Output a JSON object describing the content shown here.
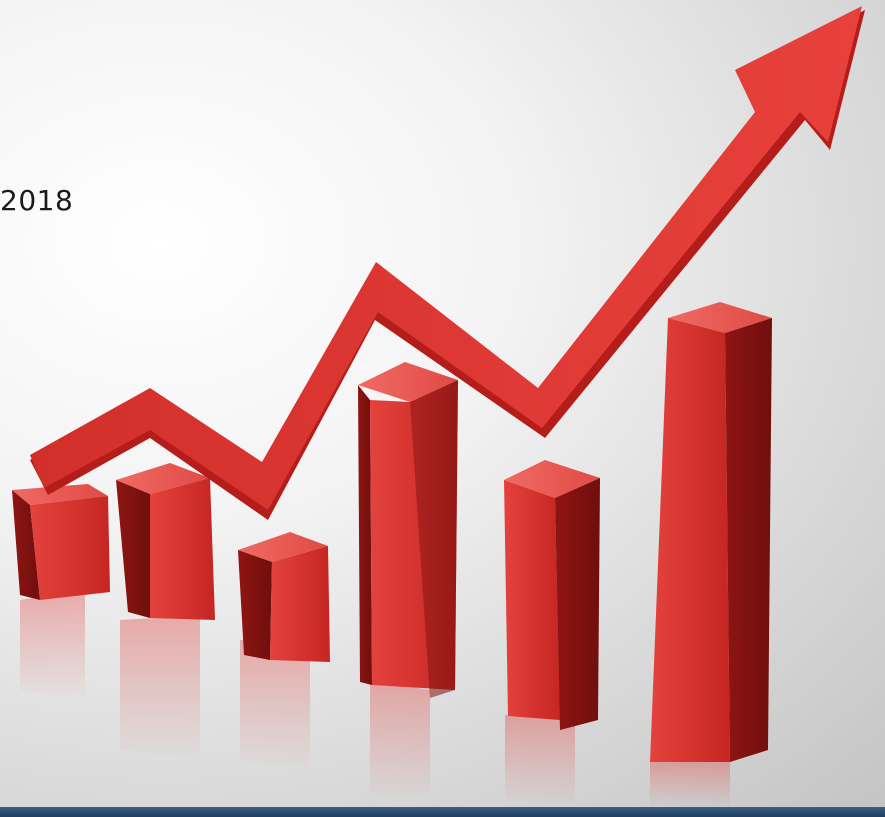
{
  "caption": {
    "year": "2018"
  },
  "image": {
    "subject": "rising-bar-chart-with-arrow",
    "bar_color": "#d9302d",
    "arrow_color": "#e03a36",
    "bottom_bar_color": "#2c4e74"
  }
}
